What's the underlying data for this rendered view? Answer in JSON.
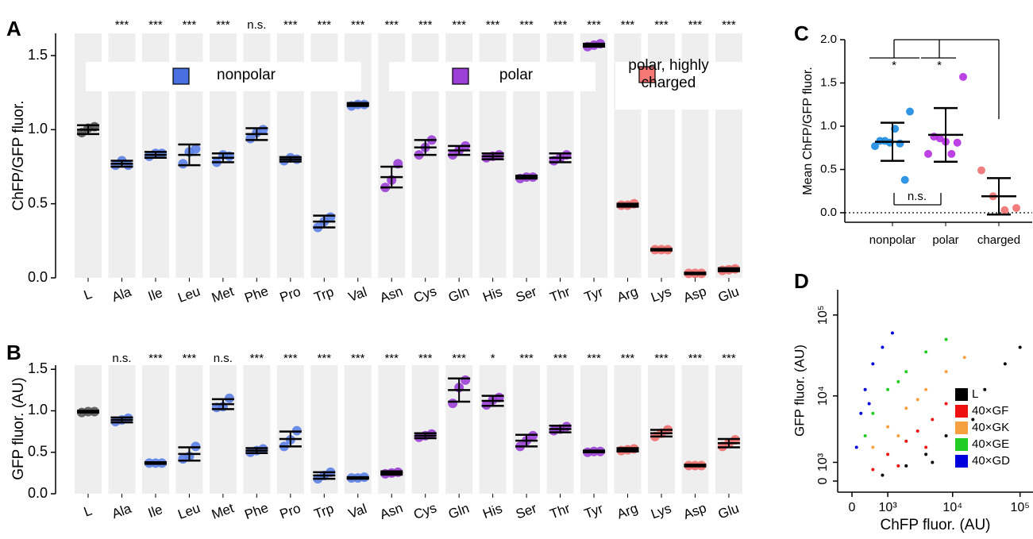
{
  "chart_data": [
    {
      "type": "strip",
      "panel_label": "A",
      "y_label": "ChFP/GFP fluor.",
      "categories": [
        "L",
        "Ala",
        "Ile",
        "Leu",
        "Met",
        "Phe",
        "Pro",
        "Trp",
        "Val",
        "Asn",
        "Cys",
        "Gln",
        "His",
        "Ser",
        "Thr",
        "Tyr",
        "Arg",
        "Lys",
        "Asp",
        "Glu"
      ],
      "colors": [
        "#555555",
        "#5b7fe6",
        "#5b7fe6",
        "#5b7fe6",
        "#5b7fe6",
        "#5b7fe6",
        "#5b7fe6",
        "#5b7fe6",
        "#5b7fe6",
        "#9b3fd6",
        "#9b3fd6",
        "#9b3fd6",
        "#9b3fd6",
        "#9b3fd6",
        "#9b3fd6",
        "#9b3fd6",
        "#f06e6e",
        "#f06e6e",
        "#f06e6e",
        "#f06e6e"
      ],
      "values": [
        1.0,
        0.77,
        0.83,
        0.83,
        0.81,
        0.97,
        0.8,
        0.38,
        1.17,
        0.68,
        0.88,
        0.86,
        0.82,
        0.68,
        0.81,
        1.57,
        0.49,
        0.19,
        0.03,
        0.055
      ],
      "errors": [
        0.03,
        0.02,
        0.02,
        0.07,
        0.03,
        0.04,
        0.015,
        0.04,
        0.01,
        0.07,
        0.05,
        0.03,
        0.02,
        0.01,
        0.03,
        0.01,
        0.01,
        0.005,
        0.005,
        0.01
      ],
      "points": [
        [
          0.98,
          1.01,
          1.02
        ],
        [
          0.76,
          0.79,
          0.76
        ],
        [
          0.82,
          0.84,
          0.84
        ],
        [
          0.77,
          0.85,
          0.87
        ],
        [
          0.78,
          0.83,
          0.82
        ],
        [
          0.94,
          0.98,
          1.0
        ],
        [
          0.79,
          0.81,
          0.8
        ],
        [
          0.34,
          0.38,
          0.41
        ],
        [
          1.16,
          1.17,
          1.17
        ],
        [
          0.61,
          0.66,
          0.77
        ],
        [
          0.83,
          0.88,
          0.93
        ],
        [
          0.83,
          0.86,
          0.89
        ],
        [
          0.81,
          0.82,
          0.83
        ],
        [
          0.67,
          0.68,
          0.68
        ],
        [
          0.79,
          0.81,
          0.83
        ],
        [
          1.56,
          1.57,
          1.58
        ],
        [
          0.49,
          0.49,
          0.5
        ],
        [
          0.19,
          0.19,
          0.19
        ],
        [
          0.03,
          0.03,
          0.03
        ],
        [
          0.05,
          0.055,
          0.06
        ]
      ],
      "significance": [
        null,
        "***",
        "***",
        "***",
        "***",
        "n.s.",
        "***",
        "***",
        "***",
        "***",
        "***",
        "***",
        "***",
        "***",
        "***",
        "***",
        "***",
        "***",
        "***",
        "***"
      ],
      "ylim": [
        0,
        1.65
      ],
      "yticks": [
        {
          "value": 0,
          "label": "0.0"
        },
        {
          "value": 0.5,
          "label": "0.5"
        },
        {
          "value": 1,
          "label": "1.0"
        },
        {
          "value": 1.5,
          "label": "1.5"
        }
      ],
      "bands": true,
      "legend": [
        {
          "name": "nonpolar",
          "color": "#4a6fe0"
        },
        {
          "name": "polar",
          "color": "#9b3fd6"
        },
        {
          "name": "polar, highly charged",
          "color": "#f87878"
        }
      ]
    },
    {
      "type": "strip",
      "panel_label": "B",
      "y_label": "GFP fluor. (AU)",
      "categories": [
        "L",
        "Ala",
        "Ile",
        "Leu",
        "Met",
        "Phe",
        "Pro",
        "Trp",
        "Val",
        "Asn",
        "Cys",
        "Gln",
        "His",
        "Ser",
        "Thr",
        "Tyr",
        "Arg",
        "Lys",
        "Asp",
        "Glu"
      ],
      "colors": [
        "#555555",
        "#5b7fe6",
        "#5b7fe6",
        "#5b7fe6",
        "#5b7fe6",
        "#5b7fe6",
        "#5b7fe6",
        "#5b7fe6",
        "#5b7fe6",
        "#9b3fd6",
        "#9b3fd6",
        "#9b3fd6",
        "#9b3fd6",
        "#9b3fd6",
        "#9b3fd6",
        "#9b3fd6",
        "#f06e6e",
        "#f06e6e",
        "#f06e6e",
        "#f06e6e"
      ],
      "values": [
        0.99,
        0.89,
        0.37,
        0.48,
        1.08,
        0.52,
        0.66,
        0.22,
        0.19,
        0.25,
        0.7,
        1.25,
        1.12,
        0.64,
        0.78,
        0.51,
        0.53,
        0.73,
        0.34,
        0.61
      ],
      "errors": [
        0.01,
        0.03,
        0.01,
        0.08,
        0.06,
        0.03,
        0.09,
        0.04,
        0.01,
        0.02,
        0.03,
        0.14,
        0.06,
        0.07,
        0.04,
        0.01,
        0.02,
        0.04,
        0.01,
        0.05
      ],
      "points": [
        [
          0.98,
          0.99,
          0.99
        ],
        [
          0.87,
          0.89,
          0.91
        ],
        [
          0.37,
          0.37,
          0.37
        ],
        [
          0.42,
          0.45,
          0.57
        ],
        [
          1.04,
          1.05,
          1.15
        ],
        [
          0.5,
          0.52,
          0.54
        ],
        [
          0.57,
          0.65,
          0.76
        ],
        [
          0.18,
          0.22,
          0.26
        ],
        [
          0.19,
          0.19,
          0.2
        ],
        [
          0.24,
          0.25,
          0.26
        ],
        [
          0.68,
          0.7,
          0.72
        ],
        [
          1.09,
          1.28,
          1.37
        ],
        [
          1.07,
          1.13,
          1.16
        ],
        [
          0.57,
          0.64,
          0.7
        ],
        [
          0.76,
          0.78,
          0.81
        ],
        [
          0.5,
          0.51,
          0.51
        ],
        [
          0.52,
          0.53,
          0.54
        ],
        [
          0.69,
          0.73,
          0.77
        ],
        [
          0.34,
          0.34,
          0.34
        ],
        [
          0.57,
          0.61,
          0.65
        ]
      ],
      "significance": [
        null,
        "n.s.",
        "***",
        "***",
        "n.s.",
        "***",
        "***",
        "***",
        "***",
        "***",
        "***",
        "***",
        "*",
        "***",
        "***",
        "***",
        "***",
        "***",
        "***",
        "***"
      ],
      "ylim": [
        0,
        1.55
      ],
      "yticks": [
        {
          "value": 0,
          "label": "0.0"
        },
        {
          "value": 0.5,
          "label": "0.5"
        },
        {
          "value": 1,
          "label": "1.0"
        },
        {
          "value": 1.5,
          "label": "1.5"
        }
      ],
      "bands": true
    },
    {
      "type": "strip",
      "panel_label": "C",
      "y_label": "Mean ChFP/GFP fluor.",
      "categories": [
        "nonpolar",
        "polar",
        "charged"
      ],
      "colors": [
        "#1a8be0",
        "#b62ee0",
        "#f07070"
      ],
      "values": [
        0.82,
        0.9,
        0.19
      ],
      "errors": [
        0.22,
        0.31,
        0.21
      ],
      "points": [
        [
          0.77,
          0.83,
          0.83,
          0.81,
          0.97,
          0.8,
          0.38,
          1.17
        ],
        [
          0.68,
          0.88,
          0.86,
          0.82,
          0.68,
          0.81,
          1.57
        ],
        [
          0.49,
          0.19,
          0.03,
          0.055
        ]
      ],
      "ylim": [
        -0.11,
        2.0
      ],
      "yticks": [
        {
          "value": 0,
          "label": "0.0"
        },
        {
          "value": 0.5,
          "label": "0.5"
        },
        {
          "value": 1,
          "label": "1.0"
        },
        {
          "value": 1.5,
          "label": "1.5"
        },
        {
          "value": 2,
          "label": "2.0"
        }
      ],
      "zero_line": true,
      "annotations": [
        "*",
        "*",
        "n.s."
      ]
    },
    {
      "type": "scatter",
      "panel_label": "D",
      "x_label": "ChFP fluor. (AU)",
      "y_label": "GFP fluor. (AU)",
      "series": [
        {
          "name": "L",
          "color": "#000000",
          "x": [
            800,
            2000,
            4000,
            8000,
            15000,
            30000,
            60000,
            100000,
            5000,
            20000
          ],
          "y": [
            300,
            800,
            1500,
            3000,
            6000,
            12000,
            25000,
            40000,
            1000,
            5000
          ]
        },
        {
          "name": "40×GF",
          "color": "#ee1111",
          "x": [
            500,
            1000,
            2000,
            3000,
            5000,
            1500,
            8000,
            4000
          ],
          "y": [
            600,
            1500,
            2500,
            3500,
            5000,
            800,
            8000,
            2000
          ]
        },
        {
          "name": "40×GK",
          "color": "#f7a040",
          "x": [
            500,
            1000,
            2000,
            4000,
            8000,
            15000,
            1500,
            3000
          ],
          "y": [
            2000,
            4000,
            7000,
            12000,
            20000,
            30000,
            3000,
            9000
          ]
        },
        {
          "name": "40×GE",
          "color": "#22cc22",
          "x": [
            300,
            500,
            1000,
            2000,
            4000,
            8000,
            1500
          ],
          "y": [
            3000,
            6000,
            12000,
            20000,
            35000,
            50000,
            15000
          ]
        },
        {
          "name": "40×GD",
          "color": "#0000dd",
          "x": [
            100,
            200,
            300,
            500,
            800,
            1200,
            400
          ],
          "y": [
            2000,
            6000,
            12000,
            25000,
            40000,
            60000,
            8000
          ]
        }
      ],
      "xlim": [
        -500,
        200000
      ],
      "ylim": [
        -500,
        200000
      ],
      "xticks": [
        {
          "value": 0,
          "label": "0"
        },
        {
          "value": 1000,
          "label": "10³"
        },
        {
          "value": 10000,
          "label": "10⁴"
        },
        {
          "value": 100000,
          "label": "10⁵"
        }
      ],
      "yticks": [
        {
          "value": 0,
          "label": "0"
        },
        {
          "value": 1000,
          "label": "10³"
        },
        {
          "value": 10000,
          "label": "10⁴"
        },
        {
          "value": 100000,
          "label": "10⁵"
        }
      ],
      "legend": "lower right"
    }
  ]
}
